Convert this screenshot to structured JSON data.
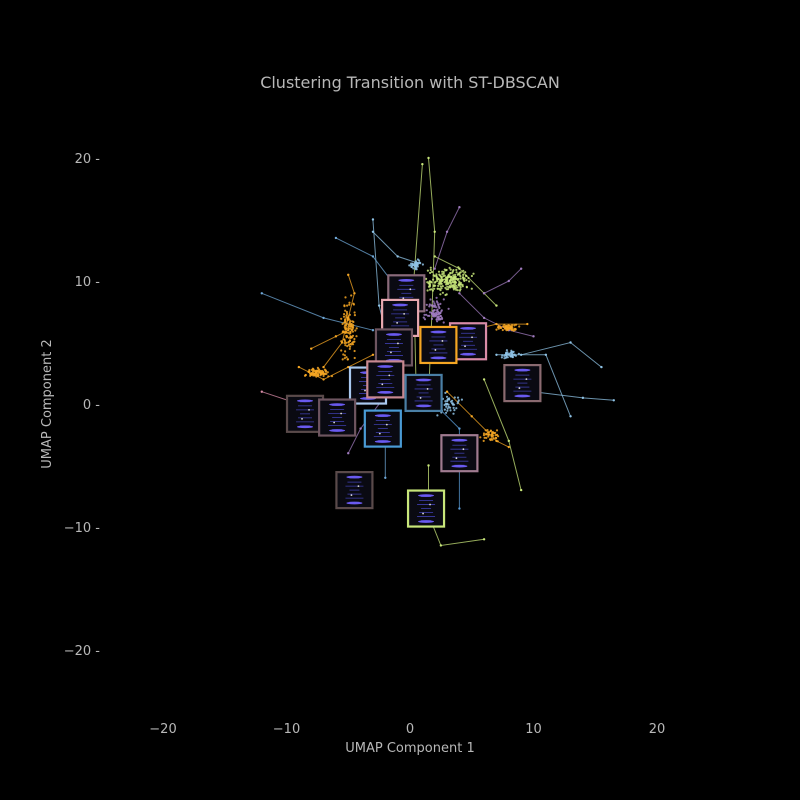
{
  "chart_data": {
    "type": "scatter",
    "title": "Clustering Transition with ST-DBSCAN",
    "xlabel": "UMAP Component 1",
    "ylabel": "UMAP Component 2",
    "xlim": [
      -25,
      30
    ],
    "ylim": [
      -25,
      25
    ],
    "xticks": [
      -20,
      -10,
      0,
      10,
      20
    ],
    "yticks": [
      -20,
      -10,
      0,
      10,
      20
    ],
    "xtick_labels": [
      "−20",
      "−10",
      "0",
      "10",
      "20"
    ],
    "ytick_labels": [
      "−20 -",
      "−10 -",
      "0 -",
      "10 -",
      "20 -"
    ],
    "grid": false,
    "background": "#000000",
    "trajectories": [
      {
        "color": "#c8e67a",
        "points": [
          [
            1.5,
            0.5
          ],
          [
            1.8,
            8
          ],
          [
            2.0,
            14
          ],
          [
            1.5,
            20
          ]
        ]
      },
      {
        "color": "#c8e67a",
        "points": [
          [
            0.5,
            1
          ],
          [
            0.3,
            10
          ],
          [
            1.0,
            19.5
          ]
        ]
      },
      {
        "color": "#c8e67a",
        "points": [
          [
            1.5,
            -5
          ],
          [
            1.5,
            -9
          ],
          [
            2.5,
            -11.5
          ],
          [
            6,
            -11
          ]
        ]
      },
      {
        "color": "#c8e67a",
        "points": [
          [
            6,
            2
          ],
          [
            8,
            -3
          ],
          [
            9,
            -7
          ]
        ]
      },
      {
        "color": "#c8e67a",
        "points": [
          [
            2,
            12
          ],
          [
            4,
            11
          ],
          [
            6,
            9
          ],
          [
            7,
            8
          ]
        ]
      },
      {
        "color": "#8fc3e6",
        "points": [
          [
            -3,
            15
          ],
          [
            -2.5,
            8
          ],
          [
            -1,
            2
          ]
        ]
      },
      {
        "color": "#8fc3e6",
        "points": [
          [
            -3,
            14
          ],
          [
            -1,
            12
          ],
          [
            0.5,
            11.5
          ]
        ]
      },
      {
        "color": "#8fc3e6",
        "points": [
          [
            7,
            4
          ],
          [
            11,
            4
          ],
          [
            13,
            -1
          ]
        ]
      },
      {
        "color": "#8fc3e6",
        "points": [
          [
            9,
            4
          ],
          [
            13,
            5
          ],
          [
            15.5,
            3
          ]
        ]
      },
      {
        "color": "#8fc3e6",
        "points": [
          [
            10,
            1
          ],
          [
            14,
            0.5
          ],
          [
            16.5,
            0.3
          ]
        ]
      },
      {
        "color": "#6fa8d8",
        "points": [
          [
            -12,
            9
          ],
          [
            -7,
            7
          ],
          [
            -3,
            6
          ]
        ]
      },
      {
        "color": "#6fa8d8",
        "points": [
          [
            -6,
            13.5
          ],
          [
            -3,
            12
          ],
          [
            -1.5,
            10
          ]
        ]
      },
      {
        "color": "#6fa8d8",
        "points": [
          [
            -2,
            -1
          ],
          [
            -2,
            -3
          ],
          [
            -2,
            -6
          ]
        ]
      },
      {
        "color": "#a07bbf",
        "points": [
          [
            2,
            11
          ],
          [
            3,
            14
          ],
          [
            4,
            16
          ]
        ]
      },
      {
        "color": "#a07bbf",
        "points": [
          [
            4,
            9
          ],
          [
            6,
            7
          ],
          [
            8,
            6
          ],
          [
            10,
            5.5
          ]
        ]
      },
      {
        "color": "#a07bbf",
        "points": [
          [
            6,
            9
          ],
          [
            8,
            10
          ],
          [
            9,
            11
          ]
        ]
      },
      {
        "color": "#a07bbf",
        "points": [
          [
            -1,
            2
          ],
          [
            -4,
            -2
          ],
          [
            -5,
            -4
          ]
        ]
      },
      {
        "color": "#d98ca8",
        "points": [
          [
            -12,
            1
          ],
          [
            -9,
            0
          ],
          [
            -6,
            -1
          ]
        ]
      },
      {
        "color": "#f5a623",
        "points": [
          [
            -5,
            10.5
          ],
          [
            -4.5,
            9
          ],
          [
            -5,
            7
          ],
          [
            -5.5,
            5
          ],
          [
            -7,
            3
          ]
        ]
      },
      {
        "color": "#f5a623",
        "points": [
          [
            -9,
            3
          ],
          [
            -7,
            2
          ],
          [
            -5,
            3
          ],
          [
            -3,
            4
          ]
        ]
      },
      {
        "color": "#f5a623",
        "points": [
          [
            -8,
            4.5
          ],
          [
            -6,
            5.5
          ],
          [
            -5,
            6
          ]
        ]
      },
      {
        "color": "#f5a623",
        "points": [
          [
            3,
            5
          ],
          [
            5,
            6
          ],
          [
            7,
            6.5
          ],
          [
            9.5,
            6.5
          ]
        ]
      },
      {
        "color": "#f5a623",
        "points": [
          [
            3,
            1
          ],
          [
            5,
            -1
          ],
          [
            7,
            -3
          ],
          [
            8,
            -3.5
          ]
        ]
      },
      {
        "color": "#5a9bd5",
        "points": [
          [
            0,
            2
          ],
          [
            2,
            0
          ],
          [
            4,
            -2
          ],
          [
            4,
            -8.5
          ]
        ]
      }
    ],
    "blobs": [
      {
        "color": "#c8e67a",
        "center": [
          3,
          10
        ],
        "spread": [
          3,
          1.6
        ],
        "count": 220
      },
      {
        "color": "#8fc3e6",
        "center": [
          0.5,
          11.3
        ],
        "spread": [
          0.8,
          0.6
        ],
        "count": 40
      },
      {
        "color": "#f5a623",
        "center": [
          -5,
          6
        ],
        "spread": [
          1.0,
          4.0
        ],
        "count": 120
      },
      {
        "color": "#f5a623",
        "center": [
          -7.5,
          2.5
        ],
        "spread": [
          1.5,
          0.6
        ],
        "count": 80
      },
      {
        "color": "#f5a623",
        "center": [
          8,
          6.2
        ],
        "spread": [
          1.5,
          0.4
        ],
        "count": 60
      },
      {
        "color": "#f5a623",
        "center": [
          6.5,
          -2.5
        ],
        "spread": [
          1.2,
          0.8
        ],
        "count": 40
      },
      {
        "color": "#a07bbf",
        "center": [
          2,
          7.5
        ],
        "spread": [
          1.5,
          1.5
        ],
        "count": 80
      },
      {
        "color": "#8fc3e6",
        "center": [
          3,
          0
        ],
        "spread": [
          2,
          1.5
        ],
        "count": 60
      },
      {
        "color": "#8fc3e6",
        "center": [
          8,
          4
        ],
        "spread": [
          1.2,
          0.6
        ],
        "count": 40
      }
    ],
    "insets": [
      {
        "center": [
          -0.3,
          9.0
        ],
        "border": "#8a6a7a"
      },
      {
        "center": [
          -0.8,
          7.0
        ],
        "border": "#e8a8b0"
      },
      {
        "center": [
          4.7,
          5.1
        ],
        "border": "#d98ca8"
      },
      {
        "color_note": "",
        "center": [
          -1.3,
          4.6
        ],
        "border": "#6e5560"
      },
      {
        "center": [
          2.3,
          4.8
        ],
        "border": "#f5a623"
      },
      {
        "center": [
          -3.4,
          1.5
        ],
        "border": "#a9c8ee"
      },
      {
        "center": [
          -2.0,
          2.0
        ],
        "border": "#c88890"
      },
      {
        "center": [
          1.1,
          0.9
        ],
        "border": "#4a7fa5"
      },
      {
        "center": [
          9.1,
          1.7
        ],
        "border": "#8a6a70"
      },
      {
        "center": [
          -8.5,
          -0.8
        ],
        "border": "#5a4a4a"
      },
      {
        "center": [
          -5.9,
          -1.1
        ],
        "border": "#6e5560"
      },
      {
        "center": [
          -2.2,
          -2.0
        ],
        "border": "#4a9bd5"
      },
      {
        "center": [
          4.0,
          -4.0
        ],
        "border": "#a07b90"
      },
      {
        "center": [
          -4.5,
          -7.0
        ],
        "border": "#5a4a4a"
      },
      {
        "center": [
          1.3,
          -8.5
        ],
        "border": "#c8e67a"
      }
    ]
  }
}
